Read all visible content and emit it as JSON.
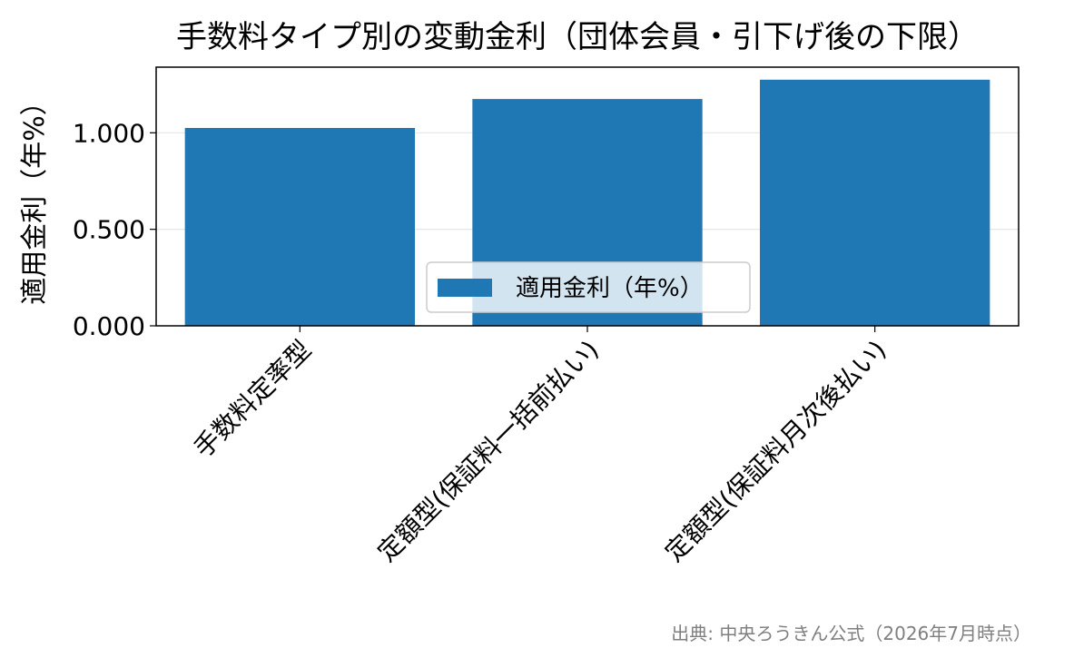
{
  "chart_data": {
    "type": "bar",
    "title": "手数料タイプ別の変動金利（団体会員・引下げ後の下限）",
    "xlabel": "",
    "ylabel": "適用金利（年%）",
    "categories": [
      "手数料定率型",
      "定額型(保証料一括前払い)",
      "定額型(保証料月次後払い)"
    ],
    "series": [
      {
        "name": "適用金利（年%）",
        "values": [
          1.025,
          1.175,
          1.275
        ],
        "color": "#1f77b4"
      }
    ],
    "ylim": [
      0,
      1.34
    ],
    "yticks": [
      0,
      0.5,
      1.0
    ],
    "ytick_labels": [
      "0.000",
      "0.500",
      "1.000"
    ],
    "grid": "y",
    "legend_position": "lower-center"
  },
  "source_note": "出典: 中央ろうきん公式（2026年7月時点）"
}
